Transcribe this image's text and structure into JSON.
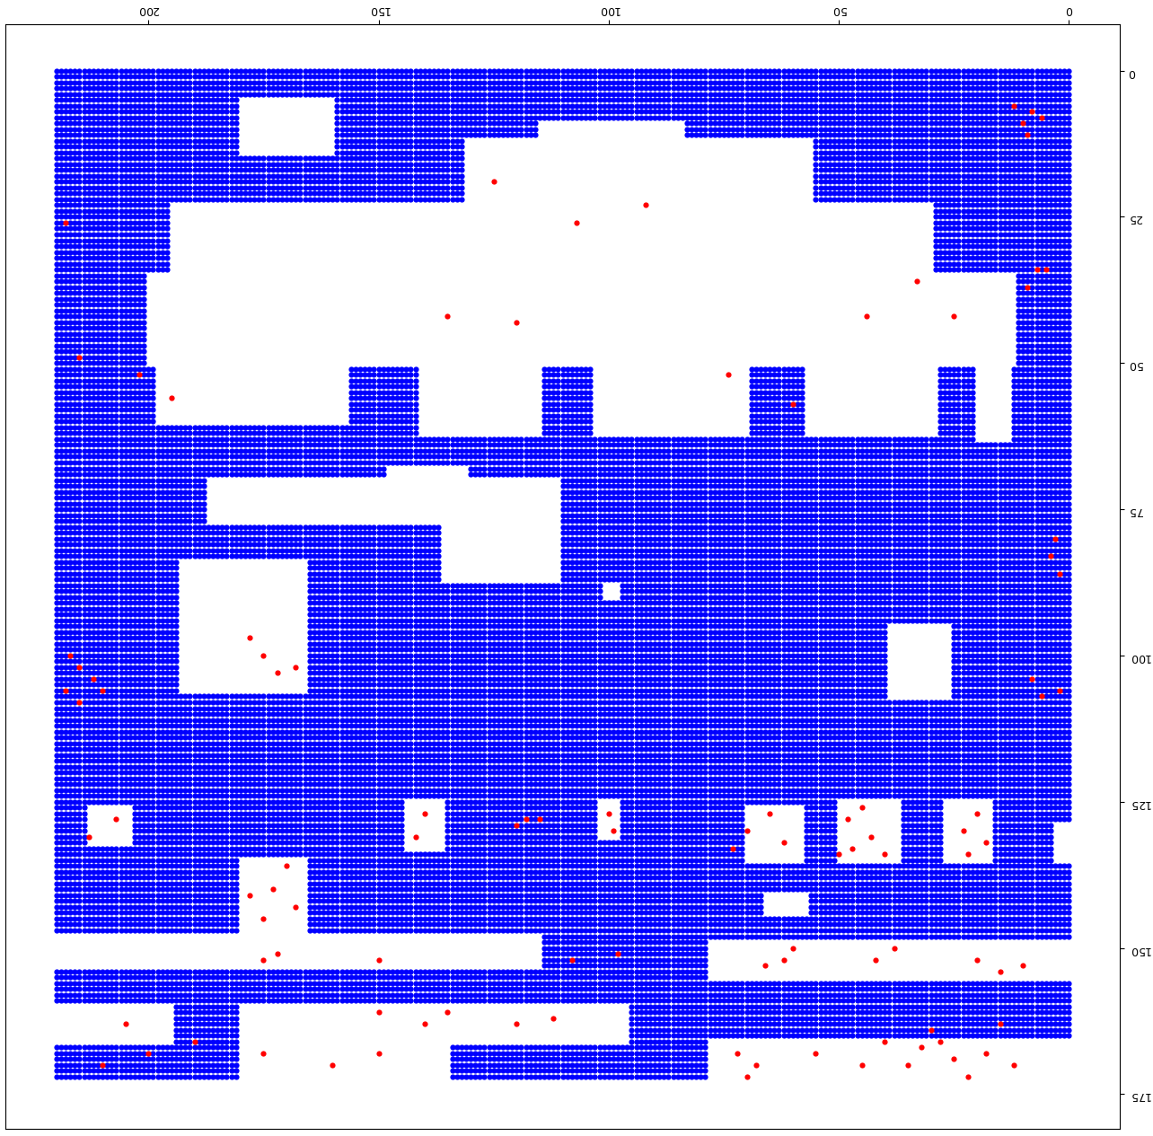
{
  "chart_data": {
    "type": "scatter",
    "grid_x": [
      0,
      220
    ],
    "grid_y": [
      0,
      172
    ],
    "color": "blue",
    "highlight_color": "red",
    "marker": "o",
    "xlim": [
      231,
      -11
    ],
    "ylim": [
      181,
      -8
    ],
    "xticks": [
      0,
      50,
      100,
      150,
      200
    ],
    "yticks": [
      0,
      25,
      50,
      75,
      100,
      125,
      150,
      175
    ],
    "empty_regions": [
      [
        84,
        115,
        9,
        12
      ],
      [
        56,
        131,
        12,
        23
      ],
      [
        30,
        164,
        23,
        35
      ],
      [
        164,
        195,
        23,
        34
      ],
      [
        160,
        180,
        5,
        14
      ],
      [
        12,
        200,
        35,
        50
      ],
      [
        157,
        198,
        50,
        60
      ],
      [
        115,
        141,
        50,
        62
      ],
      [
        70,
        103,
        50,
        62
      ],
      [
        29,
        57,
        50,
        62
      ],
      [
        13,
        20,
        50,
        63
      ],
      [
        111,
        187,
        70,
        77
      ],
      [
        131,
        148,
        68,
        73
      ],
      [
        111,
        136,
        77,
        87
      ],
      [
        166,
        193,
        84,
        106
      ],
      [
        26,
        39,
        95,
        107
      ],
      [
        98,
        101,
        88,
        90
      ],
      [
        204,
        213,
        126,
        132
      ],
      [
        136,
        144,
        125,
        133
      ],
      [
        98,
        102,
        125,
        131
      ],
      [
        58,
        70,
        126,
        135
      ],
      [
        37,
        50,
        125,
        135
      ],
      [
        17,
        27,
        125,
        135
      ],
      [
        0,
        3,
        129,
        135
      ],
      [
        166,
        180,
        135,
        147
      ],
      [
        57,
        66,
        141,
        144
      ],
      [
        115,
        220,
        148,
        153
      ],
      [
        0,
        78,
        149,
        155
      ],
      [
        195,
        220,
        160,
        166
      ],
      [
        96,
        180,
        160,
        166
      ],
      [
        135,
        180,
        166,
        172
      ],
      [
        0,
        78,
        166,
        172
      ]
    ],
    "highlight_points": [
      [
        8,
        7
      ],
      [
        10,
        9
      ],
      [
        12,
        6
      ],
      [
        9,
        11
      ],
      [
        6,
        8
      ],
      [
        7,
        34
      ],
      [
        5,
        34
      ],
      [
        9,
        37
      ],
      [
        125,
        19
      ],
      [
        92,
        23
      ],
      [
        107,
        26
      ],
      [
        120,
        43
      ],
      [
        135,
        42
      ],
      [
        74,
        52
      ],
      [
        60,
        57
      ],
      [
        44,
        42
      ],
      [
        25,
        42
      ],
      [
        33,
        36
      ],
      [
        202,
        52
      ],
      [
        195,
        56
      ],
      [
        218,
        26
      ],
      [
        215,
        49
      ],
      [
        217,
        100
      ],
      [
        215,
        102
      ],
      [
        212,
        104
      ],
      [
        210,
        106
      ],
      [
        218,
        106
      ],
      [
        215,
        108
      ],
      [
        178,
        97
      ],
      [
        175,
        100
      ],
      [
        172,
        103
      ],
      [
        168,
        102
      ],
      [
        3,
        80
      ],
      [
        4,
        83
      ],
      [
        2,
        86
      ],
      [
        8,
        104
      ],
      [
        6,
        107
      ],
      [
        2,
        106
      ],
      [
        115,
        128
      ],
      [
        118,
        128
      ],
      [
        120,
        129
      ],
      [
        45,
        126
      ],
      [
        48,
        128
      ],
      [
        43,
        131
      ],
      [
        47,
        133
      ],
      [
        40,
        134
      ],
      [
        50,
        134
      ],
      [
        20,
        127
      ],
      [
        23,
        130
      ],
      [
        18,
        132
      ],
      [
        22,
        134
      ],
      [
        65,
        127
      ],
      [
        70,
        130
      ],
      [
        62,
        132
      ],
      [
        73,
        133
      ],
      [
        100,
        127
      ],
      [
        99,
        130
      ],
      [
        140,
        127
      ],
      [
        142,
        131
      ],
      [
        207,
        128
      ],
      [
        213,
        131
      ],
      [
        170,
        136
      ],
      [
        173,
        140
      ],
      [
        168,
        143
      ],
      [
        175,
        145
      ],
      [
        178,
        141
      ],
      [
        60,
        150
      ],
      [
        62,
        152
      ],
      [
        66,
        153
      ],
      [
        38,
        150
      ],
      [
        42,
        152
      ],
      [
        20,
        152
      ],
      [
        15,
        154
      ],
      [
        10,
        153
      ],
      [
        172,
        151
      ],
      [
        150,
        152
      ],
      [
        175,
        152
      ],
      [
        108,
        152
      ],
      [
        98,
        151
      ],
      [
        205,
        163
      ],
      [
        190,
        166
      ],
      [
        150,
        161
      ],
      [
        140,
        163
      ],
      [
        135,
        161
      ],
      [
        120,
        163
      ],
      [
        112,
        162
      ],
      [
        30,
        164
      ],
      [
        28,
        166
      ],
      [
        32,
        167
      ],
      [
        25,
        169
      ],
      [
        35,
        170
      ],
      [
        22,
        172
      ],
      [
        18,
        168
      ],
      [
        12,
        170
      ],
      [
        70,
        172
      ],
      [
        68,
        170
      ],
      [
        72,
        168
      ],
      [
        55,
        168
      ],
      [
        45,
        170
      ],
      [
        150,
        168
      ],
      [
        160,
        170
      ],
      [
        175,
        168
      ],
      [
        210,
        170
      ],
      [
        200,
        168
      ],
      [
        40,
        166
      ],
      [
        15,
        163
      ]
    ]
  }
}
